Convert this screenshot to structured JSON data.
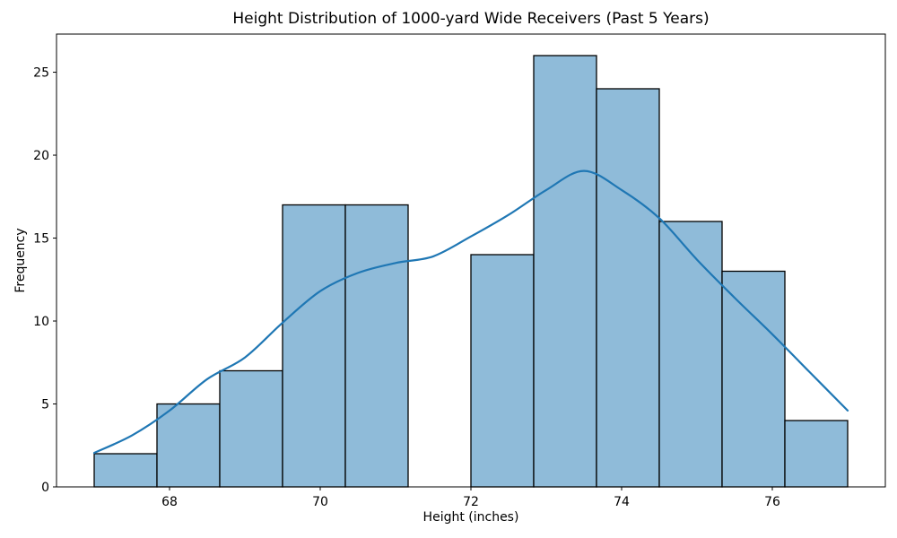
{
  "chart_data": {
    "type": "histogram",
    "title": "Height Distribution of 1000-yard Wide Receivers (Past 5 Years)",
    "xlabel": "Height (inches)",
    "ylabel": "Frequency",
    "xlim": [
      66.5,
      77.5
    ],
    "ylim": [
      0,
      27.3
    ],
    "xticks": [
      68,
      70,
      72,
      74,
      76
    ],
    "yticks": [
      0,
      5,
      10,
      15,
      20,
      25
    ],
    "grid": false,
    "legend": "none",
    "bins": {
      "edges": [
        67.0,
        67.8333,
        68.6667,
        69.5,
        70.3333,
        71.1667,
        72.0,
        72.8333,
        73.6667,
        74.5,
        75.3333,
        76.1667,
        77.0
      ],
      "frequencies": [
        2,
        5,
        7,
        17,
        17,
        0,
        14,
        26,
        24,
        16,
        13,
        4
      ]
    },
    "kde_curve": {
      "x": [
        67,
        67.5,
        68,
        68.5,
        69,
        69.5,
        70,
        70.5,
        71,
        71.5,
        72,
        72.5,
        73,
        73.5,
        74,
        74.5,
        75,
        75.5,
        76,
        76.5,
        77
      ],
      "y": [
        2.05,
        3.1,
        4.6,
        6.5,
        7.8,
        9.9,
        11.8,
        12.9,
        13.5,
        13.9,
        15.1,
        16.4,
        17.9,
        19.05,
        17.9,
        16.2,
        13.7,
        11.4,
        9.2,
        6.9,
        4.6
      ]
    },
    "colors": {
      "bar_fill": "#8fbbd9",
      "bar_edge": "#000000",
      "kde_line": "#1f77b4",
      "axes": "#000000",
      "background": "#ffffff"
    }
  }
}
